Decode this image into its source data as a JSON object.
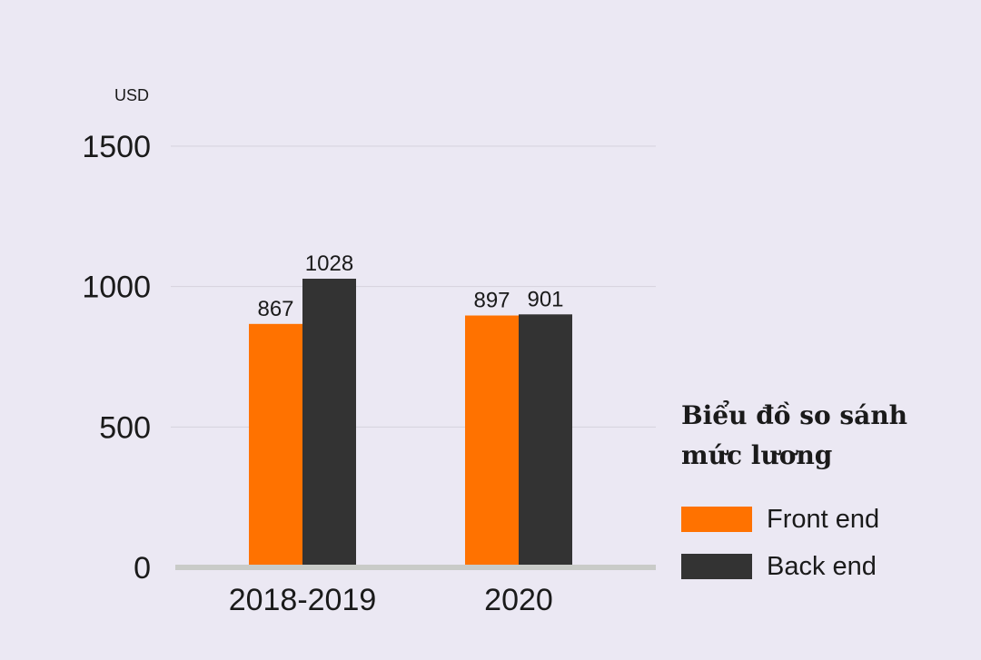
{
  "chart_data": {
    "type": "bar",
    "title": "Biểu đồ so sánh mức lương",
    "unit_label": "USD",
    "categories": [
      "2018-2019",
      "2020"
    ],
    "series": [
      {
        "name": "Front end",
        "color": "#ff7200",
        "values": [
          867,
          897
        ]
      },
      {
        "name": "Back end",
        "color": "#333333",
        "values": [
          1028,
          901
        ]
      }
    ],
    "ylim": [
      0,
      1500
    ],
    "yticks": [
      0,
      500,
      1000,
      1500
    ],
    "grid": true,
    "legend_position": "right"
  }
}
